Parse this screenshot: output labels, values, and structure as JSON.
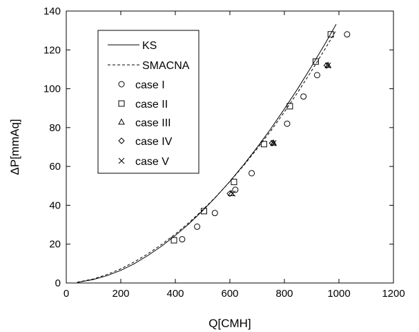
{
  "chart_data": {
    "type": "scatter",
    "title": "",
    "xlabel": "Q[CMH]",
    "ylabel": "ΔP[mmAq]",
    "xlim": [
      0,
      1200
    ],
    "ylim": [
      0,
      140
    ],
    "x_ticks": [
      0,
      200,
      400,
      600,
      800,
      1000,
      1200
    ],
    "y_ticks": [
      0,
      20,
      40,
      60,
      80,
      100,
      120,
      140
    ],
    "grid": false,
    "legend_position": "top-left",
    "series": [
      {
        "name": "KS",
        "kind": "line",
        "style": "solid",
        "x": [
          40,
          100,
          150,
          200,
          250,
          300,
          350,
          400,
          450,
          500,
          550,
          600,
          650,
          700,
          750,
          800,
          850,
          900,
          950,
          990
        ],
        "y": [
          0.3,
          1.8,
          3.8,
          6.5,
          10.0,
          14.2,
          19.0,
          24.5,
          30.5,
          37.2,
          44.5,
          52.3,
          60.8,
          69.8,
          79.4,
          89.6,
          100.3,
          111.6,
          123.4,
          133.2
        ]
      },
      {
        "name": "SMACNA",
        "kind": "line",
        "style": "dashed",
        "x": [
          40,
          100,
          150,
          200,
          250,
          300,
          350,
          400,
          450,
          500,
          550,
          600,
          650,
          700,
          750,
          800,
          850,
          900,
          950,
          990
        ],
        "y": [
          0.4,
          2.1,
          4.4,
          7.3,
          10.9,
          15.1,
          19.9,
          25.2,
          31.1,
          37.6,
          44.6,
          52.2,
          60.4,
          69.1,
          78.3,
          88.1,
          98.4,
          109.3,
          120.7,
          130.2
        ]
      },
      {
        "name": "case I",
        "kind": "marker",
        "marker": "circle",
        "x": [
          425,
          480,
          545,
          620,
          680,
          810,
          870,
          920,
          1030
        ],
        "y": [
          22.5,
          29,
          36,
          48,
          56.5,
          82,
          96,
          107,
          128
        ]
      },
      {
        "name": "case II",
        "kind": "marker",
        "marker": "square",
        "x": [
          395,
          505,
          615,
          725,
          820,
          915,
          970
        ],
        "y": [
          22,
          37,
          52,
          71.5,
          91,
          114,
          128
        ]
      },
      {
        "name": "case III",
        "kind": "marker",
        "marker": "triangle",
        "x": [
          605,
          760,
          960
        ],
        "y": [
          46,
          72,
          112
        ]
      },
      {
        "name": "case IV",
        "kind": "marker",
        "marker": "diamond",
        "x": [
          600,
          755,
          955
        ],
        "y": [
          46,
          72,
          112
        ]
      },
      {
        "name": "case V",
        "kind": "marker",
        "marker": "x",
        "x": [
          610,
          760,
          960
        ],
        "y": [
          46,
          72,
          112
        ]
      }
    ]
  }
}
